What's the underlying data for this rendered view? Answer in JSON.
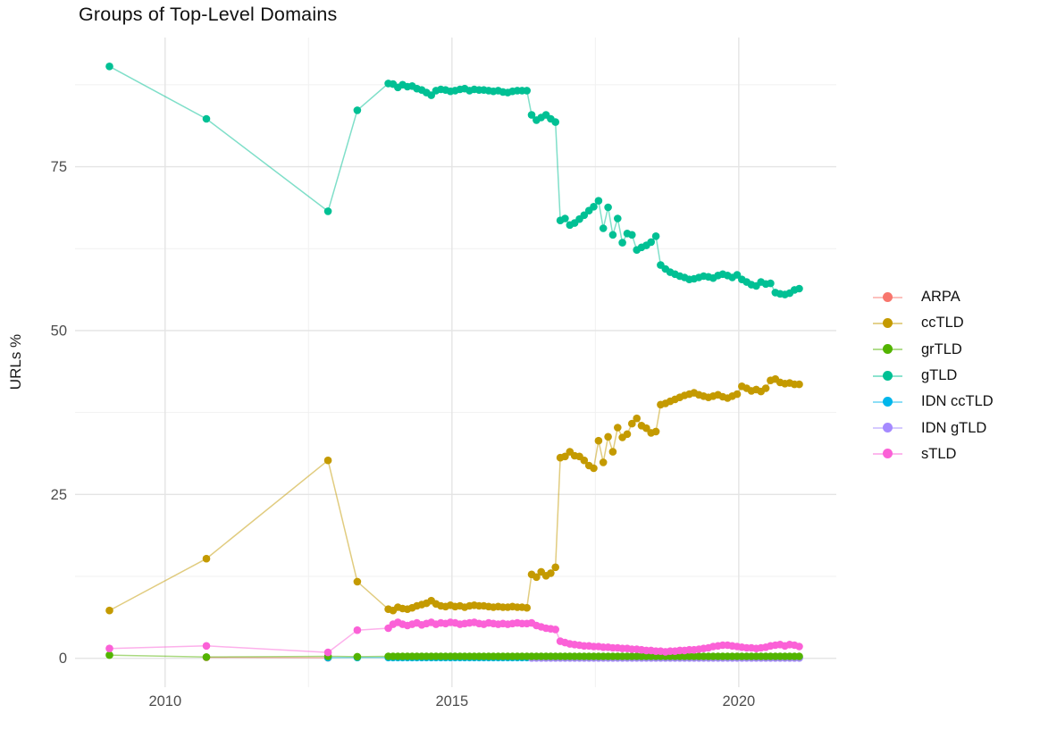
{
  "title": "Groups of Top-Level Domains",
  "chart_data": {
    "type": "line",
    "title": "Groups of Top-Level Domains",
    "xlabel": "",
    "ylabel": "URLs %",
    "xlim": [
      2008.43,
      2021.7
    ],
    "ylim": [
      -4.4,
      94.7
    ],
    "grid": "on",
    "legend_position": "right",
    "xticks": [
      2010,
      2015,
      2020
    ],
    "xtick_labels": [
      "2010",
      "2015",
      "2020"
    ],
    "xticks_minor": [
      2012.5,
      2017.5
    ],
    "yticks": [
      0,
      25,
      50,
      75
    ],
    "ytick_labels": [
      "0",
      "25",
      "50",
      "75"
    ],
    "yticks_minor": [
      12.5,
      37.5,
      62.5,
      87.5
    ],
    "series": [
      {
        "name": "ARPA",
        "color": "#F8766D",
        "early": [
          [
            2010.72,
            0.15
          ],
          [
            2012.84,
            0.08
          ]
        ],
        "dense": null
      },
      {
        "name": "IDN ccTLD",
        "color": "#00B6EB",
        "early": [
          [
            2012.84,
            0.1
          ],
          [
            2013.35,
            0.12
          ]
        ],
        "dense": {
          "start": 2013.89,
          "step": 0.0833,
          "count": 87,
          "value": 0.12
        }
      },
      {
        "name": "IDN gTLD",
        "color": "#A58AFF",
        "early": [],
        "dense": {
          "start": 2016.39,
          "step": 0.0833,
          "count": 57,
          "value": 0.06
        }
      },
      {
        "name": "grTLD",
        "color": "#53B400",
        "early": [
          [
            2009.03,
            0.5
          ],
          [
            2010.72,
            0.2
          ],
          [
            2012.84,
            0.3
          ],
          [
            2013.35,
            0.25
          ]
        ],
        "dense": {
          "start": 2013.89,
          "step": 0.0833,
          "count": 87,
          "value": 0.3
        }
      },
      {
        "name": "gTLD",
        "color": "#00C094",
        "early": [
          [
            2009.03,
            90.3
          ],
          [
            2010.72,
            82.3
          ],
          [
            2012.84,
            68.2
          ],
          [
            2013.35,
            83.6
          ]
        ],
        "dense": {
          "start": 2013.89,
          "step": 0.0833,
          "values": [
            87.7,
            87.6,
            87.1,
            87.5,
            87.2,
            87.3,
            86.9,
            86.7,
            86.3,
            85.9,
            86.6,
            86.8,
            86.7,
            86.5,
            86.6,
            86.8,
            86.9,
            86.6,
            86.8,
            86.7,
            86.7,
            86.6,
            86.5,
            86.6,
            86.4,
            86.3,
            86.5,
            86.6,
            86.6,
            86.6,
            82.9,
            82.1,
            82.5,
            82.9,
            82.3,
            81.8,
            66.8,
            67.1,
            66.1,
            66.4,
            67.0,
            67.6,
            68.3,
            68.9,
            69.8,
            65.6,
            68.8,
            64.6,
            67.1,
            63.4,
            64.8,
            64.6,
            62.3,
            62.7,
            63.0,
            63.5,
            64.4,
            60.0,
            59.4,
            58.9,
            58.6,
            58.3,
            58.1,
            57.8,
            57.9,
            58.1,
            58.3,
            58.2,
            58.0,
            58.4,
            58.6,
            58.4,
            58.1,
            58.5,
            57.8,
            57.4,
            57.0,
            56.8,
            57.4,
            57.1,
            57.2,
            55.8,
            55.6,
            55.5,
            55.7,
            56.2,
            56.4
          ]
        }
      },
      {
        "name": "ccTLD",
        "color": "#C49A00",
        "early": [
          [
            2009.03,
            7.3
          ],
          [
            2010.72,
            15.2
          ],
          [
            2012.84,
            30.2
          ],
          [
            2013.35,
            11.7
          ]
        ],
        "dense": {
          "start": 2013.89,
          "step": 0.0833,
          "values": [
            7.5,
            7.3,
            7.8,
            7.6,
            7.5,
            7.7,
            8.0,
            8.2,
            8.4,
            8.8,
            8.3,
            8.0,
            7.9,
            8.1,
            7.9,
            8.0,
            7.8,
            8.0,
            8.1,
            8.0,
            8.0,
            7.9,
            7.8,
            7.9,
            7.8,
            7.8,
            7.9,
            7.8,
            7.8,
            7.7,
            12.8,
            12.4,
            13.2,
            12.6,
            13.0,
            13.9,
            30.6,
            30.8,
            31.5,
            30.9,
            30.8,
            30.2,
            29.4,
            29.0,
            33.2,
            29.9,
            33.8,
            31.5,
            35.2,
            33.7,
            34.2,
            35.8,
            36.6,
            35.5,
            35.1,
            34.4,
            34.6,
            38.7,
            38.9,
            39.2,
            39.5,
            39.8,
            40.1,
            40.3,
            40.5,
            40.2,
            40.0,
            39.8,
            40.0,
            40.2,
            39.9,
            39.7,
            40.0,
            40.3,
            41.5,
            41.2,
            40.8,
            41.0,
            40.7,
            41.2,
            42.4,
            42.6,
            42.1,
            41.9,
            42.0,
            41.8,
            41.8
          ]
        }
      },
      {
        "name": "sTLD",
        "color": "#FB61D7",
        "early": [
          [
            2009.03,
            1.5
          ],
          [
            2010.72,
            1.9
          ],
          [
            2012.84,
            0.9
          ],
          [
            2013.35,
            4.3
          ]
        ],
        "dense": {
          "start": 2013.89,
          "step": 0.0833,
          "values": [
            4.6,
            5.2,
            5.5,
            5.2,
            5.0,
            5.2,
            5.4,
            5.1,
            5.3,
            5.5,
            5.2,
            5.4,
            5.3,
            5.5,
            5.4,
            5.2,
            5.3,
            5.4,
            5.5,
            5.3,
            5.2,
            5.4,
            5.3,
            5.2,
            5.3,
            5.2,
            5.3,
            5.4,
            5.3,
            5.3,
            5.4,
            5.0,
            4.8,
            4.6,
            4.5,
            4.4,
            2.6,
            2.4,
            2.2,
            2.1,
            2.0,
            1.9,
            1.9,
            1.8,
            1.8,
            1.7,
            1.7,
            1.6,
            1.6,
            1.5,
            1.5,
            1.4,
            1.4,
            1.3,
            1.2,
            1.2,
            1.1,
            1.1,
            1.0,
            1.1,
            1.1,
            1.2,
            1.2,
            1.3,
            1.3,
            1.4,
            1.5,
            1.6,
            1.8,
            1.9,
            2.0,
            2.0,
            1.9,
            1.8,
            1.7,
            1.6,
            1.6,
            1.5,
            1.6,
            1.7,
            1.9,
            2.0,
            2.1,
            1.9,
            2.1,
            2.0,
            1.8
          ]
        }
      }
    ],
    "legend_order": [
      "ARPA",
      "ccTLD",
      "grTLD",
      "gTLD",
      "IDN ccTLD",
      "IDN gTLD",
      "sTLD"
    ],
    "colors": {
      "ARPA": "#F8766D",
      "ccTLD": "#C49A00",
      "grTLD": "#53B400",
      "gTLD": "#00C094",
      "IDN ccTLD": "#00B6EB",
      "IDN gTLD": "#A58AFF",
      "sTLD": "#FB61D7",
      "grid_major": "#e4e4e4",
      "grid_minor": "#f1f1f1",
      "tick_text": "#4d4d4d",
      "title_text": "#111111"
    }
  }
}
